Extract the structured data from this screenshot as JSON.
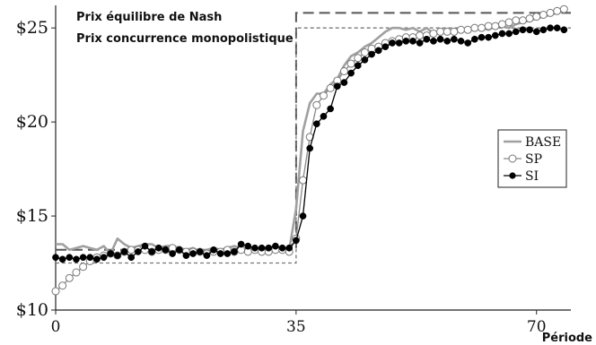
{
  "chart_data": {
    "type": "line",
    "xlabel": "Période",
    "ylabel": "",
    "xlim": [
      0,
      75
    ],
    "ylim": [
      10,
      26.2
    ],
    "x_ticks": [
      0,
      35,
      70
    ],
    "y_ticks": [
      10,
      15,
      20,
      25
    ],
    "y_tick_labels": [
      "$10",
      "$15",
      "$20",
      "$25"
    ],
    "grid": false,
    "legend_position": "right",
    "annotations": [
      {
        "name": "nash-equilibrium-price",
        "text": "Prix équilibre de Nash",
        "style": "long-dash",
        "color": "#555555",
        "points": [
          [
            0,
            13.2
          ],
          [
            35,
            13.2
          ],
          [
            35,
            25.8
          ],
          [
            75,
            25.8
          ]
        ]
      },
      {
        "name": "monopolistic-competition-price",
        "text": "Prix concurrence monopolistique",
        "style": "short-dash",
        "color": "#777777",
        "points": [
          [
            0,
            12.5
          ],
          [
            35,
            12.5
          ],
          [
            35,
            25.0
          ],
          [
            75,
            25.0
          ]
        ]
      }
    ],
    "series": [
      {
        "name": "BASE",
        "color": "#a0a0a0",
        "marker": "none",
        "x": [
          0,
          1,
          2,
          3,
          4,
          5,
          6,
          7,
          8,
          9,
          10,
          11,
          12,
          13,
          14,
          15,
          16,
          17,
          18,
          19,
          20,
          21,
          22,
          23,
          24,
          25,
          26,
          27,
          28,
          29,
          30,
          31,
          32,
          33,
          34,
          35,
          36,
          37,
          38,
          39,
          40,
          41,
          42,
          43,
          44,
          45,
          46,
          47,
          48,
          49,
          50,
          51,
          52,
          53,
          54,
          55,
          56,
          57,
          58,
          59,
          60,
          61,
          62,
          63,
          64,
          65,
          66,
          67,
          68,
          69,
          70,
          71,
          72,
          73,
          74
        ],
        "y": [
          13.5,
          13.5,
          13.2,
          13.3,
          13.4,
          13.3,
          13.2,
          13.4,
          13.0,
          13.8,
          13.5,
          13.3,
          13.4,
          13.5,
          13.5,
          13.3,
          13.4,
          13.4,
          13.3,
          13.2,
          13.3,
          13.1,
          13.2,
          13.3,
          13.2,
          13.3,
          13.4,
          13.3,
          13.2,
          13.3,
          13.2,
          13.4,
          13.3,
          13.3,
          13.2,
          15.4,
          19.5,
          21.0,
          21.5,
          21.5,
          22.0,
          22.3,
          23.0,
          23.5,
          23.7,
          24.0,
          24.2,
          24.5,
          24.8,
          25.0,
          25.0,
          24.9,
          25.0,
          24.8,
          25.0,
          24.7,
          24.8,
          24.9,
          24.8,
          24.9,
          24.9,
          25.0,
          25.0,
          24.9,
          25.1,
          25.1,
          25.0,
          25.2,
          25.3,
          25.4,
          25.5,
          25.6,
          25.7,
          25.8,
          25.9
        ]
      },
      {
        "name": "SP",
        "color": "#888888",
        "marker": "open-circle",
        "x": [
          0,
          1,
          2,
          3,
          4,
          5,
          6,
          7,
          8,
          9,
          10,
          11,
          12,
          13,
          14,
          15,
          16,
          17,
          18,
          19,
          20,
          21,
          22,
          23,
          24,
          25,
          26,
          27,
          28,
          29,
          30,
          31,
          32,
          33,
          34,
          35,
          36,
          37,
          38,
          39,
          40,
          41,
          42,
          43,
          44,
          45,
          46,
          47,
          48,
          49,
          50,
          51,
          52,
          53,
          54,
          55,
          56,
          57,
          58,
          59,
          60,
          61,
          62,
          63,
          64,
          65,
          66,
          67,
          68,
          69,
          70,
          71,
          72,
          73,
          74
        ],
        "y": [
          11.0,
          11.3,
          11.7,
          12.0,
          12.3,
          12.6,
          12.8,
          12.9,
          13.0,
          12.9,
          13.1,
          13.2,
          13.2,
          13.2,
          13.1,
          13.2,
          13.2,
          13.3,
          13.2,
          13.1,
          13.1,
          13.1,
          13.0,
          13.1,
          13.1,
          13.2,
          13.1,
          13.2,
          13.1,
          13.2,
          13.1,
          13.1,
          13.2,
          13.2,
          13.1,
          13.8,
          16.9,
          19.2,
          20.9,
          21.4,
          21.8,
          22.2,
          22.7,
          23.1,
          23.4,
          23.7,
          23.9,
          24.0,
          24.2,
          24.3,
          24.4,
          24.5,
          24.5,
          24.6,
          24.6,
          24.7,
          24.8,
          24.8,
          24.8,
          24.9,
          24.9,
          25.0,
          25.0,
          25.1,
          25.1,
          25.2,
          25.3,
          25.4,
          25.4,
          25.5,
          25.6,
          25.7,
          25.8,
          25.9,
          26.0
        ]
      },
      {
        "name": "SI",
        "color": "#000000",
        "marker": "filled-circle",
        "x": [
          0,
          1,
          2,
          3,
          4,
          5,
          6,
          7,
          8,
          9,
          10,
          11,
          12,
          13,
          14,
          15,
          16,
          17,
          18,
          19,
          20,
          21,
          22,
          23,
          24,
          25,
          26,
          27,
          28,
          29,
          30,
          31,
          32,
          33,
          34,
          35,
          36,
          37,
          38,
          39,
          40,
          41,
          42,
          43,
          44,
          45,
          46,
          47,
          48,
          49,
          50,
          51,
          52,
          53,
          54,
          55,
          56,
          57,
          58,
          59,
          60,
          61,
          62,
          63,
          64,
          65,
          66,
          67,
          68,
          69,
          70,
          71,
          72,
          73,
          74
        ],
        "y": [
          12.8,
          12.7,
          12.8,
          12.7,
          12.8,
          12.8,
          12.7,
          12.8,
          13.0,
          12.9,
          13.1,
          12.8,
          13.1,
          13.4,
          13.1,
          13.3,
          13.2,
          13.0,
          13.2,
          12.9,
          13.0,
          13.1,
          12.9,
          13.2,
          13.0,
          13.0,
          13.1,
          13.5,
          13.4,
          13.3,
          13.3,
          13.3,
          13.4,
          13.3,
          13.3,
          13.7,
          15.0,
          18.6,
          19.9,
          20.3,
          20.7,
          21.9,
          22.1,
          22.6,
          23.0,
          23.3,
          23.6,
          23.8,
          24.0,
          24.2,
          24.2,
          24.3,
          24.3,
          24.2,
          24.4,
          24.3,
          24.4,
          24.3,
          24.4,
          24.3,
          24.2,
          24.4,
          24.5,
          24.5,
          24.6,
          24.7,
          24.7,
          24.8,
          24.9,
          24.9,
          24.8,
          24.9,
          25.0,
          25.0,
          24.9
        ]
      }
    ]
  }
}
